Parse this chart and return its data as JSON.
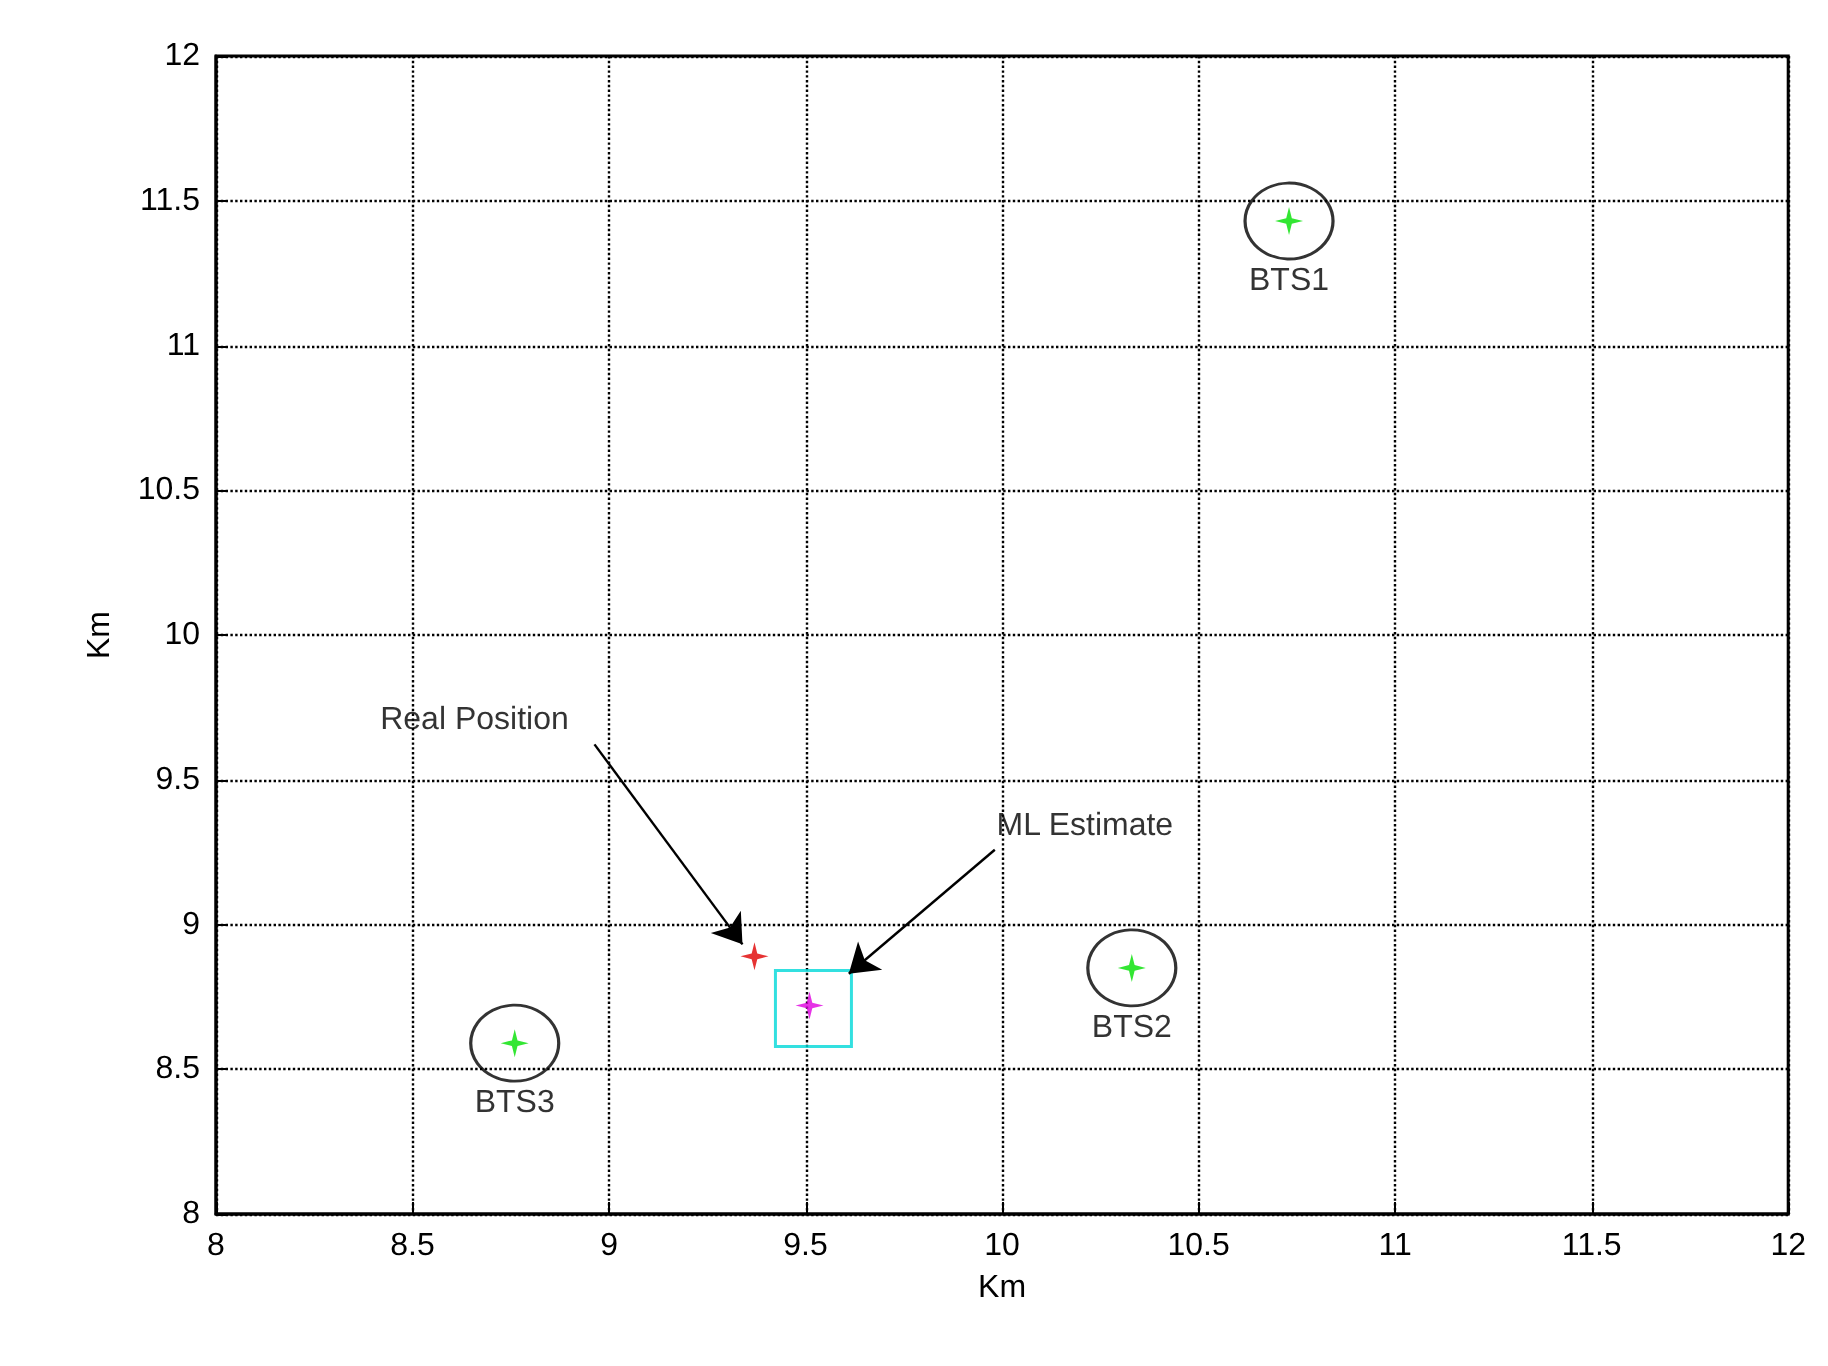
{
  "chart_data": {
    "type": "scatter",
    "xlabel": "Km",
    "ylabel": "Km",
    "xlim": [
      8,
      12
    ],
    "ylim": [
      8,
      12
    ],
    "xticks": [
      8,
      8.5,
      9,
      9.5,
      10,
      10.5,
      11,
      11.5,
      12
    ],
    "yticks": [
      8,
      8.5,
      9,
      9.5,
      10,
      10.5,
      11,
      11.5,
      12
    ],
    "grid": true,
    "line_style": "dotted",
    "series": [
      {
        "color": "#00e000",
        "marker": "star",
        "x": [
          10.73,
          10.33,
          8.76
        ],
        "values": [
          11.43,
          8.85,
          8.59
        ]
      },
      {
        "color": "#000000",
        "marker": "circle",
        "x": [
          10.73,
          10.33,
          8.76
        ],
        "values": [
          11.43,
          8.85,
          8.59
        ]
      },
      {
        "color": "#e00000",
        "marker": "star",
        "x": [
          9.37
        ],
        "values": [
          8.89
        ]
      },
      {
        "color": "#00d8d8",
        "marker": "square",
        "x": [
          9.52
        ],
        "values": [
          8.71
        ]
      },
      {
        "color": "#e000e0",
        "marker": "star",
        "x": [
          9.51
        ],
        "values": [
          8.72
        ]
      }
    ],
    "annotations": [
      {
        "text": "BTS1",
        "x": 10.73,
        "y": 11.43
      },
      {
        "text": "BTS2",
        "x": 10.33,
        "y": 8.85
      },
      {
        "text": "BTS3",
        "x": 8.76,
        "y": 8.59
      },
      {
        "text": "Real Position",
        "x": 9.37,
        "y": 8.89
      },
      {
        "text": "ML Estimate",
        "x": 9.61,
        "y": 8.83
      }
    ]
  }
}
